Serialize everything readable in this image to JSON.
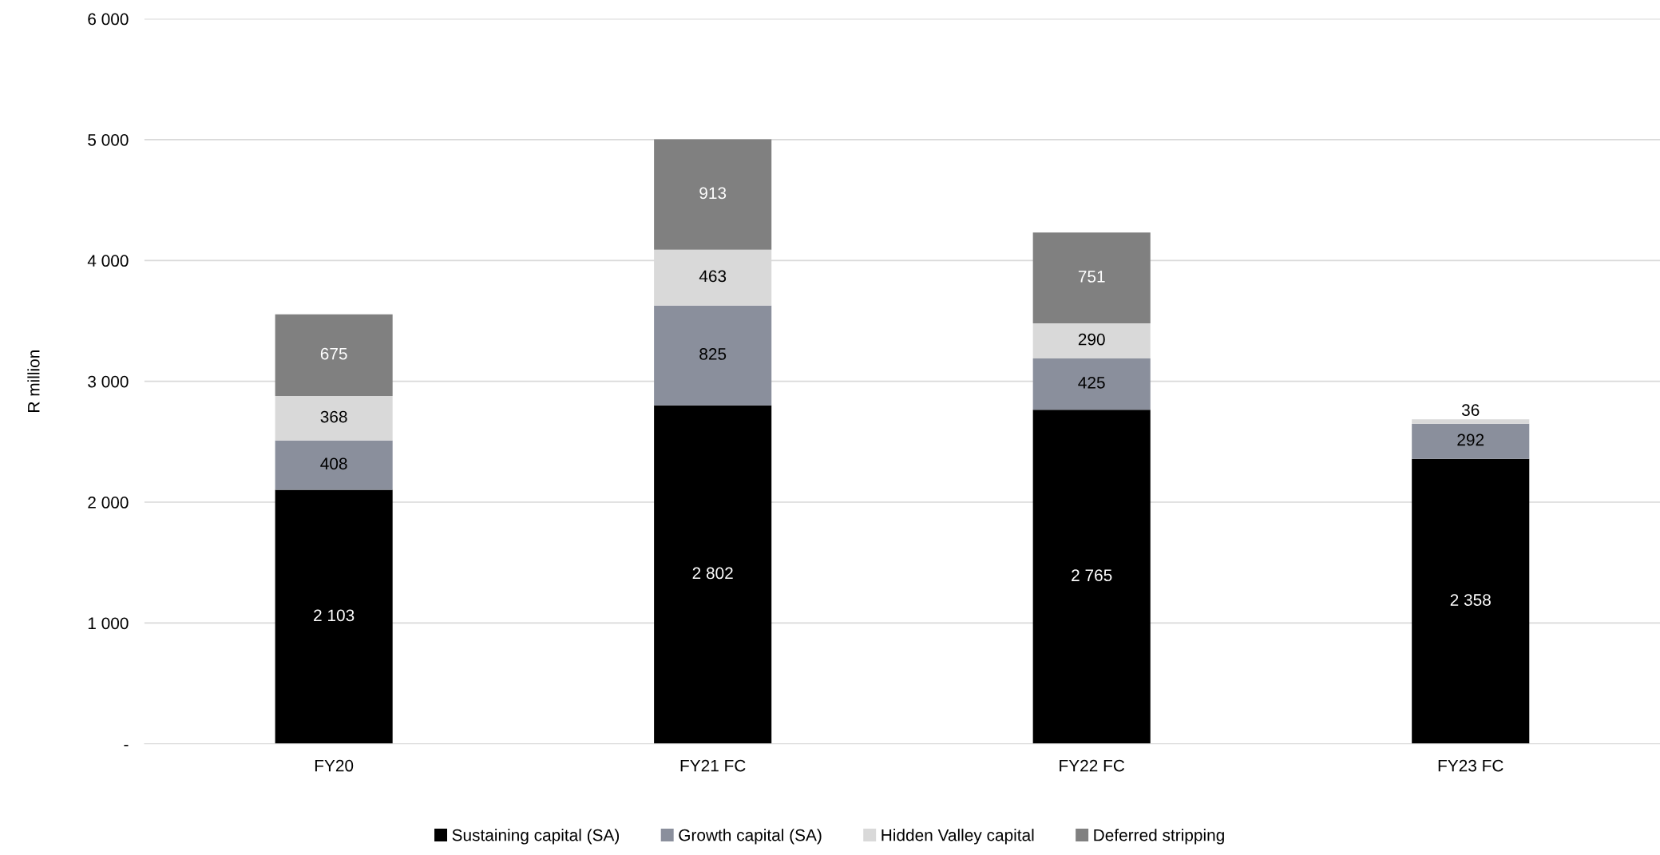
{
  "chart_data": {
    "type": "bar",
    "stacked": true,
    "ylabel": "R million",
    "categories": [
      "FY20",
      "FY21 FC",
      "FY22 FC",
      "FY23 FC"
    ],
    "series": [
      {
        "name": "Sustaining capital (SA)",
        "color": "#000000",
        "values": [
          2103,
          2802,
          2765,
          2358
        ],
        "value_labels": [
          "2 103",
          "2 802",
          "2 765",
          "2 358"
        ]
      },
      {
        "name": "Growth capital (SA)",
        "color": "#8a8f9c",
        "values": [
          408,
          825,
          425,
          292
        ],
        "value_labels": [
          "408",
          "825",
          "425",
          "292"
        ]
      },
      {
        "name": "Hidden Valley capital",
        "color": "#d9d9d9",
        "values": [
          368,
          463,
          290,
          36
        ],
        "value_labels": [
          "368",
          "463",
          "290",
          "36"
        ]
      },
      {
        "name": "Deferred stripping",
        "color": "#808080",
        "values": [
          675,
          913,
          751,
          null
        ],
        "value_labels": [
          "675",
          "913",
          "751",
          null
        ]
      }
    ],
    "ylim": [
      0,
      6000
    ],
    "yticks": [
      {
        "value": 0,
        "label": "-"
      },
      {
        "value": 1000,
        "label": "1 000"
      },
      {
        "value": 2000,
        "label": "2 000"
      },
      {
        "value": 3000,
        "label": "3 000"
      },
      {
        "value": 4000,
        "label": "4 000"
      },
      {
        "value": 5000,
        "label": "5 000"
      },
      {
        "value": 6000,
        "label": "6 000"
      }
    ],
    "grid": "y",
    "legend": "bottom"
  }
}
